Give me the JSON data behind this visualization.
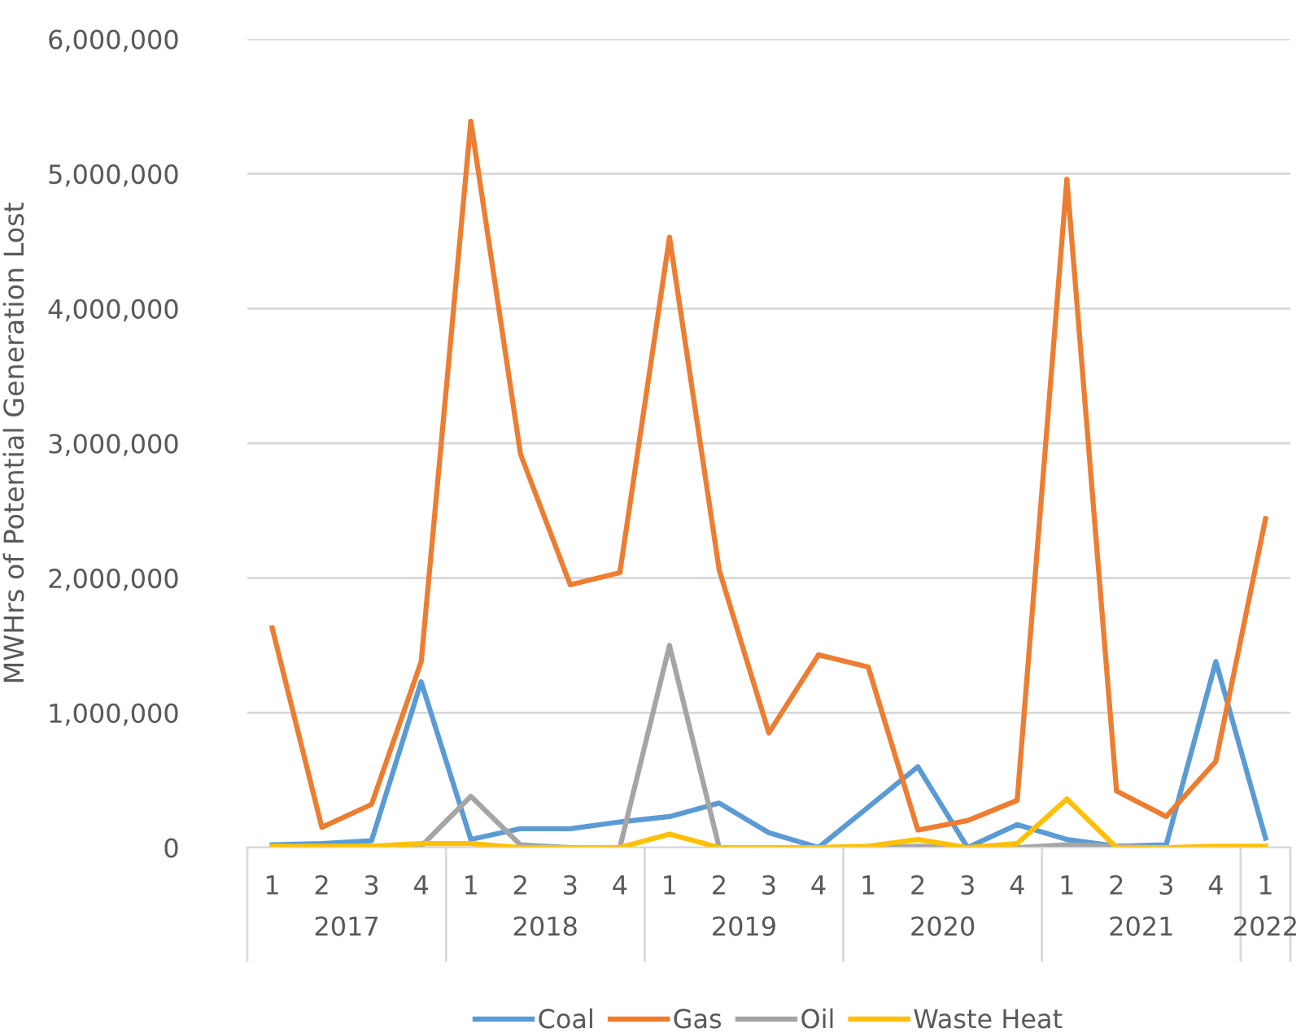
{
  "chart_data": {
    "type": "line",
    "ylabel": "MWHrs of Potential Generation Lost",
    "categories": [
      "1",
      "2",
      "3",
      "4",
      "1",
      "2",
      "3",
      "4",
      "1",
      "2",
      "3",
      "4",
      "1",
      "2",
      "3",
      "4",
      "1",
      "2",
      "3",
      "4",
      "1"
    ],
    "annotations": [
      "2017",
      "2018",
      "2019",
      "2020",
      "2021",
      "2022"
    ],
    "series": [
      {
        "name": "Coal",
        "color": "#5b9bd5",
        "values": [
          20000,
          30000,
          50000,
          1230000,
          60000,
          140000,
          140000,
          190000,
          230000,
          330000,
          110000,
          0,
          300000,
          600000,
          0,
          170000,
          60000,
          10000,
          20000,
          1380000,
          70000
        ]
      },
      {
        "name": "Gas",
        "color": "#ed7d31",
        "values": [
          1630000,
          150000,
          320000,
          1380000,
          5390000,
          2920000,
          1950000,
          2040000,
          4530000,
          2060000,
          850000,
          1430000,
          1340000,
          130000,
          200000,
          350000,
          4960000,
          420000,
          230000,
          640000,
          2440000
        ]
      },
      {
        "name": "Oil",
        "color": "#a5a5a5",
        "values": [
          0,
          0,
          0,
          10000,
          380000,
          20000,
          0,
          0,
          1500000,
          0,
          0,
          0,
          0,
          10000,
          0,
          0,
          20000,
          10000,
          0,
          0,
          0
        ]
      },
      {
        "name": "Waste Heat",
        "color": "#ffc000",
        "values": [
          10000,
          10000,
          10000,
          30000,
          30000,
          0,
          0,
          0,
          100000,
          0,
          0,
          0,
          10000,
          60000,
          0,
          30000,
          360000,
          0,
          0,
          10000,
          10000
        ]
      }
    ],
    "ylim": [
      0,
      6000000
    ],
    "yticks": [
      {
        "value": 0,
        "label": "0"
      },
      {
        "value": 1000000,
        "label": "1,000,000"
      },
      {
        "value": 2000000,
        "label": "2,000,000"
      },
      {
        "value": 3000000,
        "label": "3,000,000"
      },
      {
        "value": 4000000,
        "label": "4,000,000"
      },
      {
        "value": 5000000,
        "label": "5,000,000"
      },
      {
        "value": 6000000,
        "label": "6,000,000"
      }
    ],
    "grid": "y",
    "legend": "bottom",
    "marker": "none",
    "line_style": "solid"
  }
}
